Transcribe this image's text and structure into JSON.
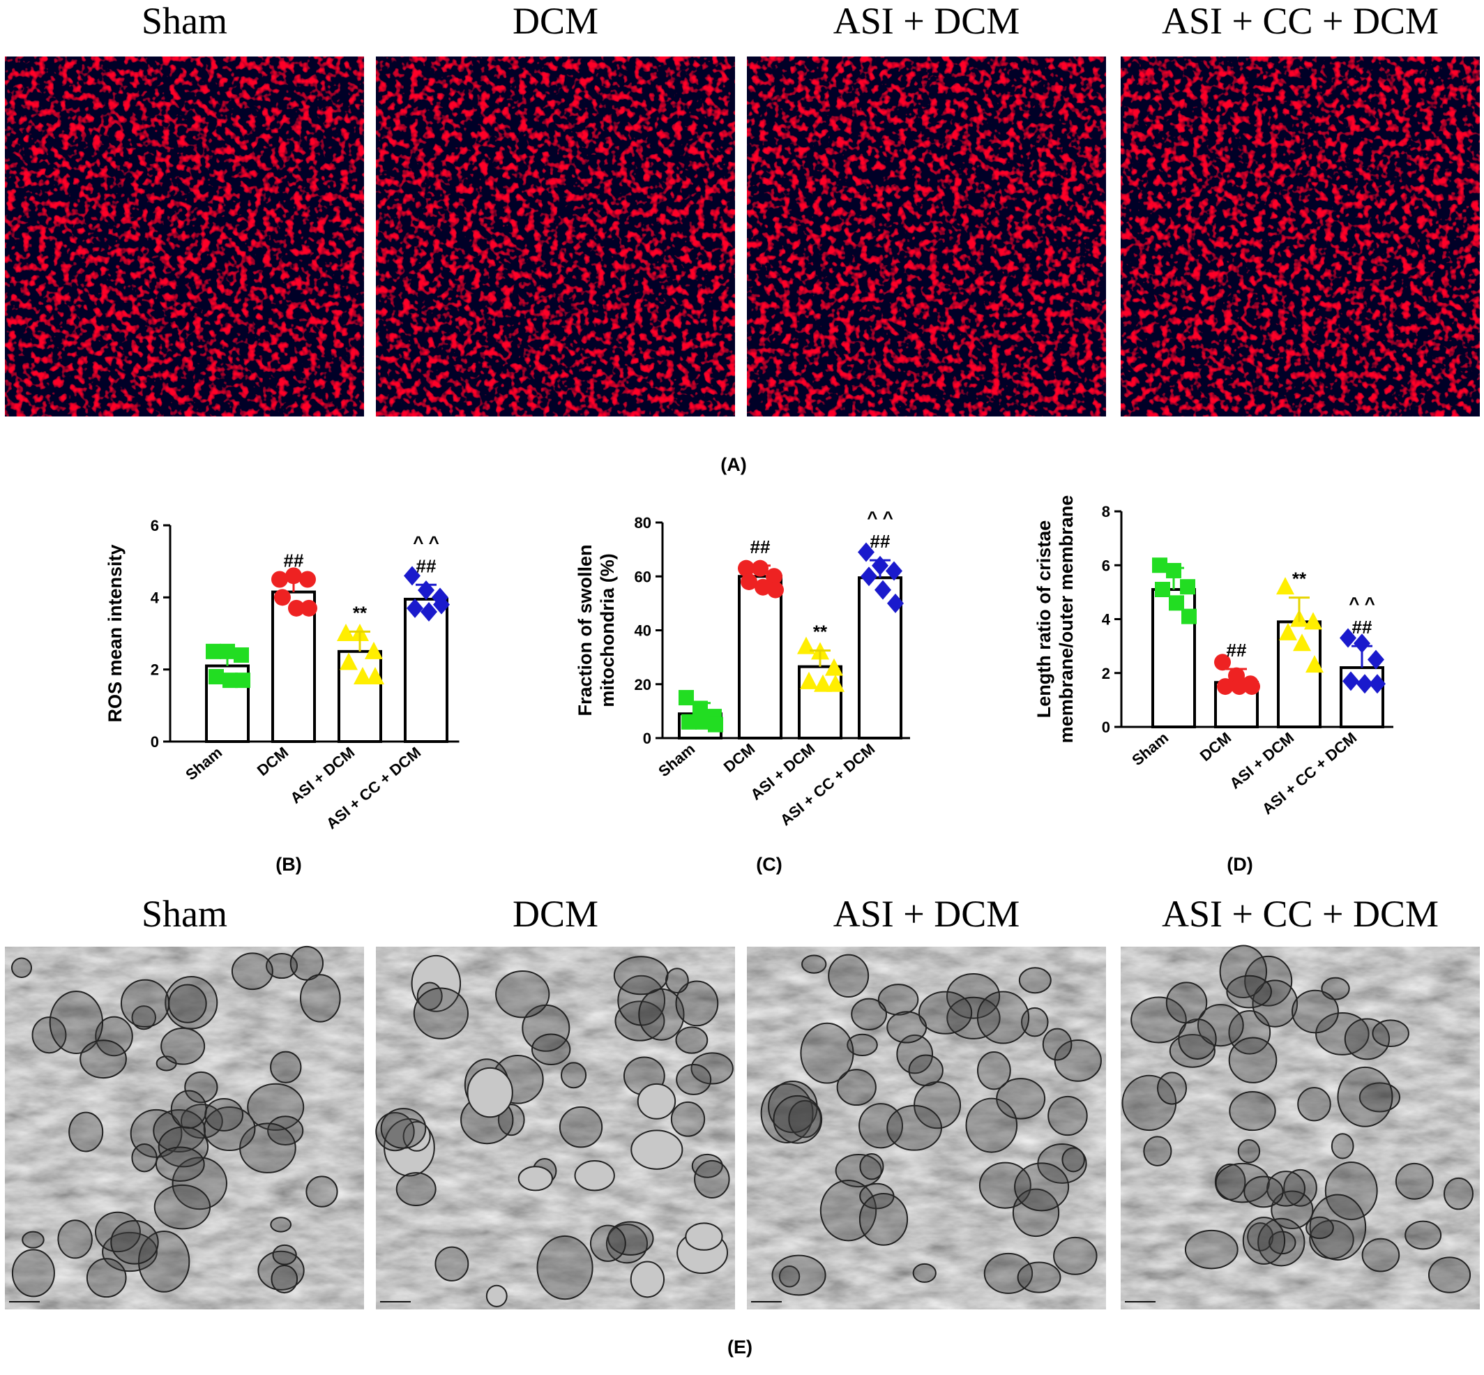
{
  "images": {
    "fluorescence": {
      "labels": [
        "Sham",
        "DCM",
        "ASI + DCM",
        "ASI + CC + DCM"
      ],
      "caption": "(A)"
    },
    "electron_microscopy": {
      "labels": [
        "Sham",
        "DCM",
        "ASI + DCM",
        "ASI + CC + DCM"
      ],
      "caption": "(E)"
    }
  },
  "chart_data": [
    {
      "type": "bar",
      "caption": "(B)",
      "ylabel": [
        "ROS mean intensity"
      ],
      "categories": [
        "Sham",
        "DCM",
        "ASI + DCM",
        "ASI + CC + DCM"
      ],
      "colors": [
        "#22dd22",
        "#ee2222",
        "#ffee00",
        "#1a1acc"
      ],
      "values": [
        2.1,
        4.15,
        2.5,
        3.95
      ],
      "errors": [
        0.3,
        0.35,
        0.55,
        0.4
      ],
      "points": [
        [
          2.5,
          2.5,
          2.4,
          1.8,
          1.7,
          1.7
        ],
        [
          4.5,
          4.6,
          4.5,
          4.0,
          3.7,
          3.7
        ],
        [
          3.0,
          3.0,
          2.5,
          2.2,
          1.8,
          1.8
        ],
        [
          4.6,
          4.2,
          4.0,
          3.7,
          3.6,
          3.8
        ]
      ],
      "annotations": [
        null,
        [
          "##"
        ],
        [
          "**"
        ],
        [
          "^ ^",
          "##"
        ]
      ],
      "ylim": [
        0,
        6
      ],
      "yticks": [
        0,
        2,
        4,
        6
      ]
    },
    {
      "type": "bar",
      "caption": "(C)",
      "ylabel": [
        "Fraction of swollen",
        "mitochondria (%)"
      ],
      "categories": [
        "Sham",
        "DCM",
        "ASI + DCM",
        "ASI + CC + DCM"
      ],
      "colors": [
        "#22dd22",
        "#ee2222",
        "#ffee00",
        "#1a1acc"
      ],
      "values": [
        9,
        60,
        26.5,
        59.5
      ],
      "errors": [
        4,
        4,
        6,
        6.5
      ],
      "points": [
        [
          15,
          11,
          8,
          6,
          6,
          5
        ],
        [
          63,
          63,
          60,
          58,
          56,
          55
        ],
        [
          34,
          32,
          26,
          21,
          20,
          20
        ],
        [
          69,
          64,
          62,
          60,
          55,
          50
        ]
      ],
      "annotations": [
        null,
        [
          "##"
        ],
        [
          "**"
        ],
        [
          "^ ^",
          "##"
        ]
      ],
      "ylim": [
        0,
        80
      ],
      "yticks": [
        0,
        20,
        40,
        60,
        80
      ]
    },
    {
      "type": "bar",
      "caption": "(D)",
      "ylabel": [
        "Length ratio of cristae",
        "membrane/outer membrane"
      ],
      "categories": [
        "Sham",
        "DCM",
        "ASI + DCM",
        "ASI + CC + DCM"
      ],
      "colors": [
        "#22dd22",
        "#ee2222",
        "#ffee00",
        "#1a1acc"
      ],
      "values": [
        5.1,
        1.65,
        3.9,
        2.2
      ],
      "errors": [
        0.8,
        0.5,
        0.9,
        0.8
      ],
      "points": [
        [
          6.0,
          5.8,
          5.2,
          5.1,
          4.6,
          4.1
        ],
        [
          2.4,
          1.9,
          1.6,
          1.5,
          1.5,
          1.5
        ],
        [
          5.2,
          4.0,
          3.9,
          3.5,
          3.1,
          2.3
        ],
        [
          3.3,
          3.1,
          2.5,
          1.7,
          1.6,
          1.6
        ]
      ],
      "annotations": [
        null,
        [
          "##"
        ],
        [
          "**"
        ],
        [
          "^ ^",
          "##"
        ]
      ],
      "ylim": [
        0,
        8
      ],
      "yticks": [
        0,
        2,
        4,
        6,
        8
      ]
    }
  ]
}
